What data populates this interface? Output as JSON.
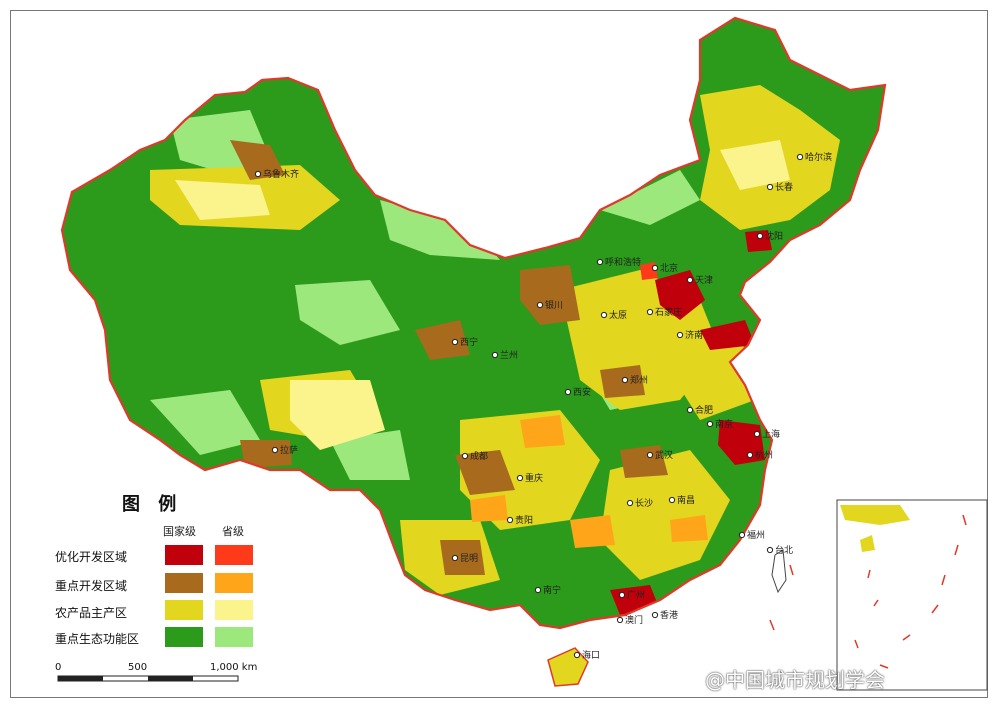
{
  "legend": {
    "title": "图 例",
    "column_national": "国家级",
    "column_provincial": "省级",
    "rows": [
      {
        "label": "优化开发区域",
        "national_color": "#c0000a",
        "provincial_color": "#ff3a1a"
      },
      {
        "label": "重点开发区域",
        "national_color": "#a86a1c",
        "provincial_color": "#ffa51a"
      },
      {
        "label": "农产品主产区",
        "national_color": "#e3d61f",
        "provincial_color": "#fbf38c"
      },
      {
        "label": "重点生态功能区",
        "national_color": "#2c9a1b",
        "provincial_color": "#9de87d"
      }
    ]
  },
  "scale_bar": {
    "labels": [
      "0",
      "500",
      "1,000 km"
    ]
  },
  "cities": [
    {
      "name": "乌鲁木齐"
    },
    {
      "name": "哈尔滨"
    },
    {
      "name": "长春"
    },
    {
      "name": "沈阳"
    },
    {
      "name": "北京"
    },
    {
      "name": "天津"
    },
    {
      "name": "呼和浩特"
    },
    {
      "name": "银川"
    },
    {
      "name": "太原"
    },
    {
      "name": "石家庄"
    },
    {
      "name": "济南"
    },
    {
      "name": "西宁"
    },
    {
      "name": "兰州"
    },
    {
      "name": "郑州"
    },
    {
      "name": "西安"
    },
    {
      "name": "合肥"
    },
    {
      "name": "南京"
    },
    {
      "name": "上海"
    },
    {
      "name": "杭州"
    },
    {
      "name": "武汉"
    },
    {
      "name": "成都"
    },
    {
      "name": "重庆"
    },
    {
      "name": "长沙"
    },
    {
      "name": "南昌"
    },
    {
      "name": "福州"
    },
    {
      "name": "台北"
    },
    {
      "name": "拉萨"
    },
    {
      "name": "贵阳"
    },
    {
      "name": "昆明"
    },
    {
      "name": "南宁"
    },
    {
      "name": "广州"
    },
    {
      "name": "香港"
    },
    {
      "name": "澳门"
    },
    {
      "name": "海口"
    }
  ],
  "watermark": "@中国城市规划学会",
  "colors": {
    "border": "#e0392b",
    "outline": "#333333"
  }
}
